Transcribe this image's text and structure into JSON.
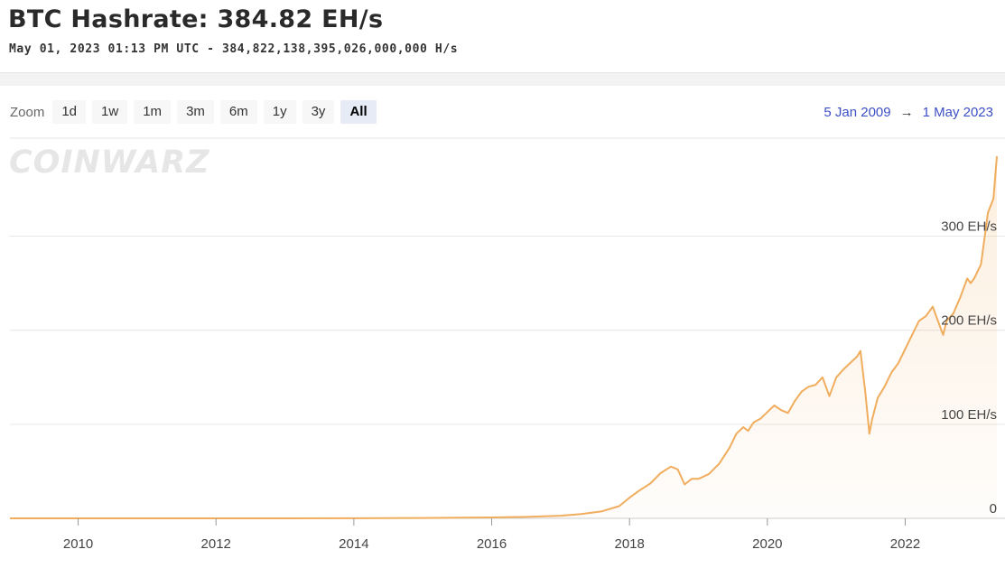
{
  "header": {
    "title": "BTC Hashrate: 384.82 EH/s",
    "subtitle": "May 01, 2023 01:13 PM UTC  -  384,822,138,395,026,000,000 H/s"
  },
  "toolbar": {
    "zoom_label": "Zoom",
    "zoom_buttons": [
      "1d",
      "1w",
      "1m",
      "3m",
      "6m",
      "1y",
      "3y",
      "All"
    ],
    "active_zoom": "All",
    "range_from": "5 Jan 2009",
    "range_arrow": "→",
    "range_to": "1 May 2023"
  },
  "watermark": "COINWARZ",
  "colors": {
    "series": "#f0ad5e",
    "range_text": "#3d4fc5",
    "gridline": "#e6e6e6"
  },
  "chart_data": {
    "type": "area",
    "title": "BTC Hashrate",
    "xlabel": "",
    "ylabel": "",
    "xlim": [
      2009.01,
      2023.33
    ],
    "ylim": [
      0,
      385
    ],
    "x_ticks": [
      2010,
      2012,
      2014,
      2016,
      2018,
      2020,
      2022
    ],
    "x_tick_labels": [
      "2010",
      "2012",
      "2014",
      "2016",
      "2018",
      "2020",
      "2022"
    ],
    "y_ticks": [
      0,
      100,
      200,
      300
    ],
    "y_tick_labels": [
      "0",
      "100 EH/s",
      "200 EH/s",
      "300 EH/s"
    ],
    "grid": "horizontal",
    "series": [
      {
        "name": "",
        "unit": "EH/s",
        "x": [
          2009.01,
          2010,
          2011,
          2012,
          2013,
          2014,
          2015,
          2016,
          2016.5,
          2017,
          2017.3,
          2017.6,
          2017.85,
          2018.0,
          2018.15,
          2018.3,
          2018.45,
          2018.6,
          2018.7,
          2018.8,
          2018.9,
          2019.0,
          2019.15,
          2019.3,
          2019.45,
          2019.55,
          2019.65,
          2019.72,
          2019.8,
          2019.9,
          2020.0,
          2020.1,
          2020.2,
          2020.3,
          2020.4,
          2020.5,
          2020.6,
          2020.7,
          2020.8,
          2020.9,
          2021.0,
          2021.1,
          2021.2,
          2021.3,
          2021.35,
          2021.42,
          2021.48,
          2021.52,
          2021.6,
          2021.7,
          2021.8,
          2021.9,
          2022.0,
          2022.1,
          2022.2,
          2022.3,
          2022.4,
          2022.5,
          2022.55,
          2022.6,
          2022.7,
          2022.8,
          2022.9,
          2022.95,
          2023.0,
          2023.1,
          2023.2,
          2023.28,
          2023.33
        ],
        "y": [
          0,
          0,
          0,
          0,
          0.01,
          0.05,
          0.35,
          1.0,
          1.5,
          2.8,
          4.5,
          7.5,
          13,
          22,
          30,
          37,
          48,
          55,
          52,
          36,
          42,
          42,
          47,
          58,
          75,
          90,
          97,
          93,
          102,
          106,
          113,
          120,
          115,
          112,
          125,
          135,
          140,
          142,
          150,
          130,
          150,
          158,
          165,
          172,
          178,
          135,
          90,
          105,
          128,
          140,
          155,
          165,
          180,
          195,
          210,
          215,
          225,
          205,
          195,
          210,
          218,
          235,
          255,
          250,
          255,
          270,
          325,
          340,
          385
        ]
      }
    ]
  }
}
